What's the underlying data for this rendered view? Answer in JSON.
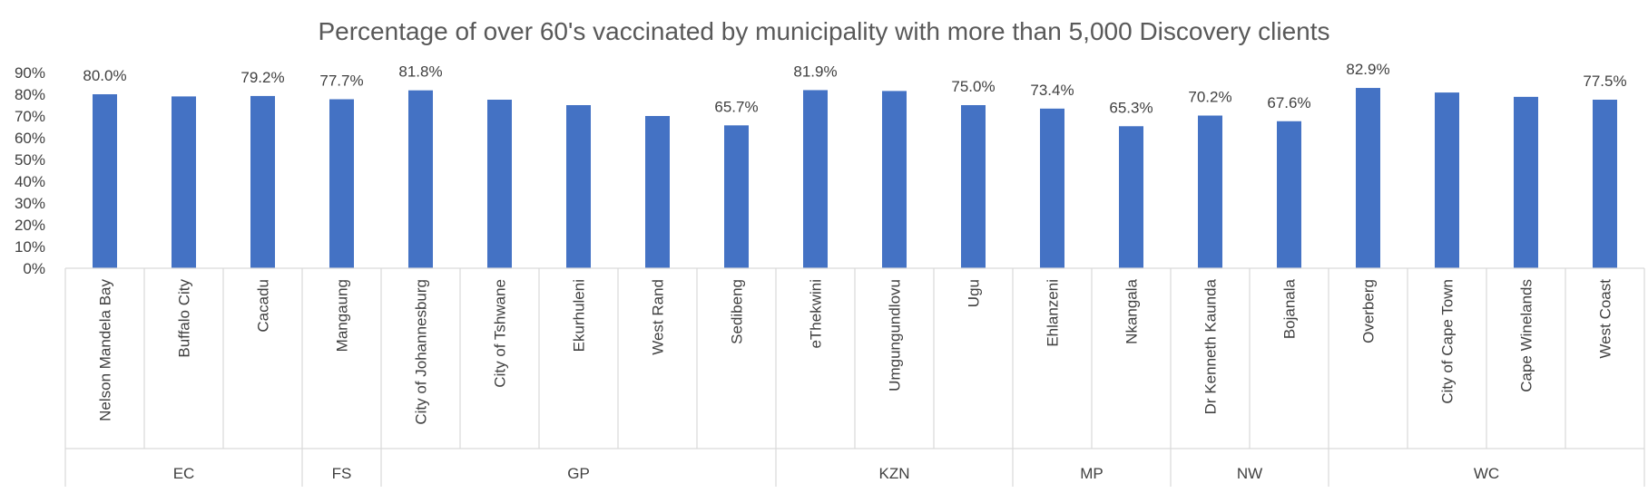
{
  "chart_data": {
    "type": "bar",
    "title": "Percentage of over 60's vaccinated by municipality with more than 5,000 Discovery clients",
    "xlabel": "",
    "ylabel": "",
    "ylim": [
      0,
      90
    ],
    "yticks": [
      "0%",
      "10%",
      "20%",
      "30%",
      "40%",
      "50%",
      "60%",
      "70%",
      "80%",
      "90%"
    ],
    "grid": false,
    "legend": "none",
    "bar_color": "#4472C4",
    "categories": [
      "Nelson Mandela Bay",
      "Buffalo City",
      "Cacadu",
      "Mangaung",
      "City of Johannesburg",
      "City of Tshwane",
      "Ekurhuleni",
      "West Rand",
      "Sedibeng",
      "eThekwini",
      "Umgungundlovu",
      "Ugu",
      "Ehlanzeni",
      "Nkangala",
      "Dr Kenneth Kaunda",
      "Bojanala",
      "Overberg",
      "City of Cape Town",
      "Cape Winelands",
      "West Coast"
    ],
    "values": [
      80.0,
      79.0,
      79.2,
      77.7,
      81.8,
      77.5,
      75.0,
      70.0,
      65.7,
      81.9,
      81.5,
      75.0,
      73.4,
      65.3,
      70.2,
      67.6,
      82.9,
      80.8,
      78.8,
      77.5
    ],
    "data_labels": [
      "80.0%",
      "",
      "79.2%",
      "77.7%",
      "81.8%",
      "",
      "",
      "",
      "65.7%",
      "81.9%",
      "",
      "75.0%",
      "73.4%",
      "65.3%",
      "70.2%",
      "67.6%",
      "82.9%",
      "",
      "",
      "77.5%"
    ],
    "groups": [
      {
        "label": "EC",
        "count": 3
      },
      {
        "label": "FS",
        "count": 1
      },
      {
        "label": "GP",
        "count": 5
      },
      {
        "label": "KZN",
        "count": 3
      },
      {
        "label": "MP",
        "count": 2
      },
      {
        "label": "NW",
        "count": 2
      },
      {
        "label": "WC",
        "count": 4
      }
    ]
  }
}
